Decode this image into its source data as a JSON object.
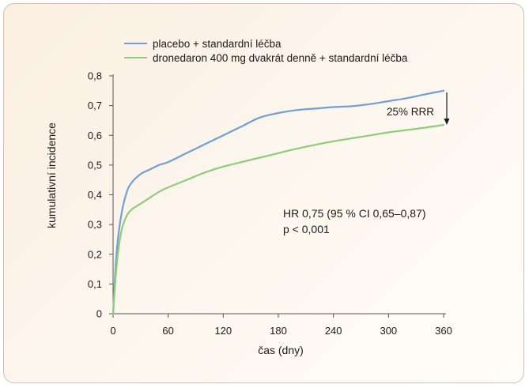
{
  "chart_data": {
    "type": "line",
    "title": "",
    "xlabel": "čas (dny)",
    "ylabel": "kumulativní incidence",
    "xlim": [
      0,
      360
    ],
    "ylim": [
      0,
      0.8
    ],
    "x_ticks": [
      "0",
      "60",
      "120",
      "180",
      "240",
      "300",
      "360"
    ],
    "y_ticks": [
      "0",
      "0,1",
      "0,2",
      "0,3",
      "0,4",
      "0,5",
      "0,6",
      "0,7",
      "0,8"
    ],
    "grid": false,
    "legend_position": "top",
    "series": [
      {
        "name": "placebo + standardní léčba",
        "color": "#6f9fd6",
        "x": [
          0,
          3,
          6,
          10,
          15,
          20,
          30,
          40,
          50,
          60,
          80,
          100,
          120,
          140,
          160,
          180,
          200,
          220,
          240,
          260,
          280,
          300,
          320,
          340,
          360
        ],
        "y": [
          0,
          0.17,
          0.27,
          0.35,
          0.41,
          0.44,
          0.47,
          0.485,
          0.5,
          0.51,
          0.54,
          0.57,
          0.6,
          0.63,
          0.66,
          0.675,
          0.685,
          0.69,
          0.695,
          0.698,
          0.705,
          0.715,
          0.725,
          0.738,
          0.75
        ]
      },
      {
        "name": "dronedaron 400 mg dvakrát denně + standardní léčba",
        "color": "#8fcc7a",
        "x": [
          0,
          3,
          6,
          10,
          15,
          20,
          30,
          40,
          50,
          60,
          80,
          100,
          120,
          140,
          160,
          180,
          200,
          220,
          240,
          260,
          280,
          300,
          320,
          340,
          360
        ],
        "y": [
          0,
          0.13,
          0.22,
          0.29,
          0.33,
          0.35,
          0.37,
          0.39,
          0.41,
          0.425,
          0.45,
          0.475,
          0.495,
          0.51,
          0.525,
          0.54,
          0.555,
          0.568,
          0.58,
          0.59,
          0.6,
          0.61,
          0.618,
          0.626,
          0.635
        ]
      }
    ],
    "annotations": {
      "rrr": "25% RRR",
      "hr": "HR 0,75 (95 % CI 0,65–0,87)",
      "p": "p < 0,001"
    }
  }
}
